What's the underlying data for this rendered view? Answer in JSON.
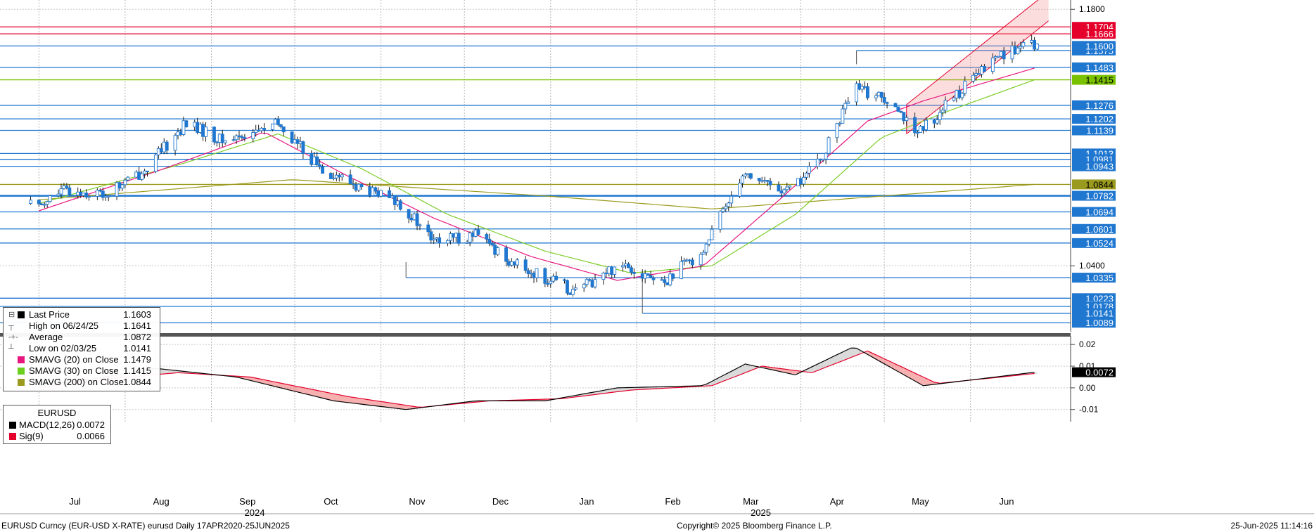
{
  "chart_data": [
    {
      "type": "candlestick",
      "title": "",
      "y_axis_ticks": [
        "1.1800",
        "1.0400"
      ],
      "y_axis_side": "right",
      "horizontal_levels": [
        {
          "label": "1.1704",
          "value": 1.1704,
          "color": "#e4002b"
        },
        {
          "label": "1.1666",
          "value": 1.1666,
          "color": "#e4002b"
        },
        {
          "label": "1.1600",
          "value": 1.16,
          "color": "#1f77d0"
        },
        {
          "label": "1.1483",
          "value": 1.1483,
          "color": "#1f77d0"
        },
        {
          "label": "1.1415",
          "value": 1.1415,
          "color": "#7ac200"
        },
        {
          "label": "1.1276",
          "value": 1.1276,
          "color": "#1f77d0"
        },
        {
          "label": "1.1202",
          "value": 1.1202,
          "color": "#1f77d0"
        },
        {
          "label": "1.1139",
          "value": 1.1139,
          "color": "#1f77d0"
        },
        {
          "label": "1.1013",
          "value": 1.1013,
          "color": "#1f77d0"
        },
        {
          "label": "1.0981",
          "value": 1.0981,
          "color": "#1f77d0"
        },
        {
          "label": "1.0943",
          "value": 1.0943,
          "color": "#1f77d0"
        },
        {
          "label": "1.0844",
          "value": 1.0844,
          "color": "#9a9a1e"
        },
        {
          "label": "1.0782",
          "value": 1.0782,
          "color": "#1f77d0"
        },
        {
          "label": "1.0694",
          "value": 1.0694,
          "color": "#1f77d0"
        },
        {
          "label": "1.0601",
          "value": 1.0601,
          "color": "#1f77d0"
        },
        {
          "label": "1.0524",
          "value": 1.0524,
          "color": "#1f77d0"
        },
        {
          "label": "1.0335",
          "value": 1.0335,
          "color": "#1f77d0"
        },
        {
          "label": "1.0223",
          "value": 1.0223,
          "color": "#1f77d0"
        },
        {
          "label": "1.0178",
          "value": 1.0178,
          "color": "#1f77d0"
        },
        {
          "label": "1.0141",
          "value": 1.0141,
          "color": "#1f77d0"
        },
        {
          "label": "1.0089",
          "value": 1.0089,
          "color": "#1f77d0"
        }
      ],
      "extra_axis_labels": [
        {
          "label": "1.1575",
          "value": 1.1575
        }
      ],
      "series_anchors": {
        "close": [
          [
            "2024-07-01",
            1.074
          ],
          [
            "2024-07-10",
            1.081
          ],
          [
            "2024-07-25",
            1.079
          ],
          [
            "2024-08-08",
            1.092
          ],
          [
            "2024-08-23",
            1.118
          ],
          [
            "2024-09-05",
            1.108
          ],
          [
            "2024-09-25",
            1.117
          ],
          [
            "2024-10-10",
            1.094
          ],
          [
            "2024-10-25",
            1.082
          ],
          [
            "2024-11-08",
            1.074
          ],
          [
            "2024-11-20",
            1.053
          ],
          [
            "2024-12-05",
            1.057
          ],
          [
            "2024-12-20",
            1.04
          ],
          [
            "2025-01-10",
            1.026
          ],
          [
            "2025-01-27",
            1.042
          ],
          [
            "2025-02-10",
            1.03
          ],
          [
            "2025-02-25",
            1.049
          ],
          [
            "2025-03-11",
            1.091
          ],
          [
            "2025-03-27",
            1.08
          ],
          [
            "2025-04-08",
            1.097
          ],
          [
            "2025-04-20",
            1.137
          ],
          [
            "2025-05-05",
            1.13
          ],
          [
            "2025-05-12",
            1.11
          ],
          [
            "2025-05-28",
            1.135
          ],
          [
            "2025-06-12",
            1.156
          ],
          [
            "2025-06-24",
            1.1603
          ]
        ],
        "sma20": [
          [
            "2024-07-01",
            1.07
          ],
          [
            "2024-08-15",
            1.093
          ],
          [
            "2024-09-20",
            1.113
          ],
          [
            "2024-10-20",
            1.089
          ],
          [
            "2024-11-20",
            1.066
          ],
          [
            "2024-12-25",
            1.045
          ],
          [
            "2025-01-25",
            1.032
          ],
          [
            "2025-02-25",
            1.04
          ],
          [
            "2025-03-25",
            1.077
          ],
          [
            "2025-04-25",
            1.119
          ],
          [
            "2025-05-15",
            1.13
          ],
          [
            "2025-06-24",
            1.1479
          ]
        ],
        "sma30": [
          [
            "2024-07-01",
            1.074
          ],
          [
            "2024-08-20",
            1.095
          ],
          [
            "2024-09-25",
            1.112
          ],
          [
            "2024-10-25",
            1.093
          ],
          [
            "2024-11-25",
            1.068
          ],
          [
            "2024-12-30",
            1.048
          ],
          [
            "2025-01-30",
            1.036
          ],
          [
            "2025-02-28",
            1.04
          ],
          [
            "2025-03-30",
            1.068
          ],
          [
            "2025-04-30",
            1.11
          ],
          [
            "2025-05-25",
            1.125
          ],
          [
            "2025-06-24",
            1.1415
          ]
        ],
        "sma200": [
          [
            "2024-07-01",
            1.076
          ],
          [
            "2024-09-30",
            1.087
          ],
          [
            "2024-12-31",
            1.078
          ],
          [
            "2025-02-28",
            1.071
          ],
          [
            "2025-04-30",
            1.078
          ],
          [
            "2025-06-24",
            1.0844
          ]
        ]
      },
      "channel": {
        "upper": [
          [
            "2025-05-09",
            1.128
          ],
          [
            "2025-06-24",
            1.182
          ]
        ],
        "lower": [
          [
            "2025-05-09",
            1.112
          ],
          [
            "2025-06-24",
            1.166
          ]
        ]
      },
      "legend": {
        "last_price": {
          "label": "Last Price",
          "value": "1.1603"
        },
        "high": {
          "label": "High on 06/24/25",
          "value": "1.1641"
        },
        "average": {
          "label": "Average",
          "value": "1.0872"
        },
        "low": {
          "label": "Low on 02/03/25",
          "value": "1.0141"
        },
        "sma20": {
          "label": "SMAVG (20)  on Close",
          "value": "1.1479",
          "color": "#e8157e"
        },
        "sma30": {
          "label": "SMAVG (30)  on Close",
          "value": "1.1415",
          "color": "#6ccf1f"
        },
        "sma200": {
          "label": "SMAVG (200)  on Close",
          "value": "1.0844",
          "color": "#9a9a1e"
        }
      },
      "colors": {
        "candle": "#1f77d0",
        "level_blue": "#1f77d0",
        "level_red": "#e4002b"
      }
    },
    {
      "type": "line",
      "title": "EURUSD",
      "y_axis_ticks": [
        "0.02",
        "0.01",
        "0.00",
        "-0.01"
      ],
      "ylim": [
        -0.013,
        0.022
      ],
      "series": [
        {
          "name": "MACD(12,26)",
          "value_label": "0.0072",
          "color": "#000000",
          "anchors": [
            [
              "2024-07-01",
              0.001
            ],
            [
              "2024-07-20",
              0.004
            ],
            [
              "2024-08-12",
              0.009
            ],
            [
              "2024-09-10",
              0.005
            ],
            [
              "2024-10-15",
              -0.006
            ],
            [
              "2024-11-10",
              -0.01
            ],
            [
              "2024-12-05",
              -0.006
            ],
            [
              "2024-12-30",
              -0.006
            ],
            [
              "2025-01-25",
              0.0
            ],
            [
              "2025-02-25",
              0.001
            ],
            [
              "2025-03-12",
              0.011
            ],
            [
              "2025-03-30",
              0.006
            ],
            [
              "2025-04-20",
              0.019
            ],
            [
              "2025-05-15",
              0.001
            ],
            [
              "2025-06-10",
              0.005
            ],
            [
              "2025-06-24",
              0.0072
            ]
          ]
        },
        {
          "name": "Sig(9)",
          "value_label": "0.0066",
          "color": "#e4002b",
          "anchors": [
            [
              "2024-07-01",
              0.0
            ],
            [
              "2024-07-25",
              0.004
            ],
            [
              "2024-08-20",
              0.007
            ],
            [
              "2024-09-15",
              0.005
            ],
            [
              "2024-10-20",
              -0.004
            ],
            [
              "2024-11-15",
              -0.009
            ],
            [
              "2024-12-10",
              -0.006
            ],
            [
              "2025-01-05",
              -0.005
            ],
            [
              "2025-01-30",
              -0.001
            ],
            [
              "2025-02-28",
              0.001
            ],
            [
              "2025-03-18",
              0.01
            ],
            [
              "2025-04-05",
              0.007
            ],
            [
              "2025-04-25",
              0.017
            ],
            [
              "2025-05-20",
              0.002
            ],
            [
              "2025-06-12",
              0.005
            ],
            [
              "2025-06-24",
              0.0066
            ]
          ]
        }
      ],
      "current_value_label": "0.0072"
    }
  ],
  "x_axis": {
    "months": [
      "Jul",
      "Aug",
      "Sep",
      "Oct",
      "Nov",
      "Dec",
      "Jan",
      "Feb",
      "Mar",
      "Apr",
      "May",
      "Jun"
    ],
    "years": [
      "2024",
      "2025"
    ]
  },
  "footer": {
    "left": "EURUSD Curncy (EUR-USD X-RATE) eurusd  Daily 17APR2020-25JUN2025",
    "center": "Copyright© 2025 Bloomberg Finance L.P.",
    "right": "25-Jun-2025 11:14:16"
  }
}
